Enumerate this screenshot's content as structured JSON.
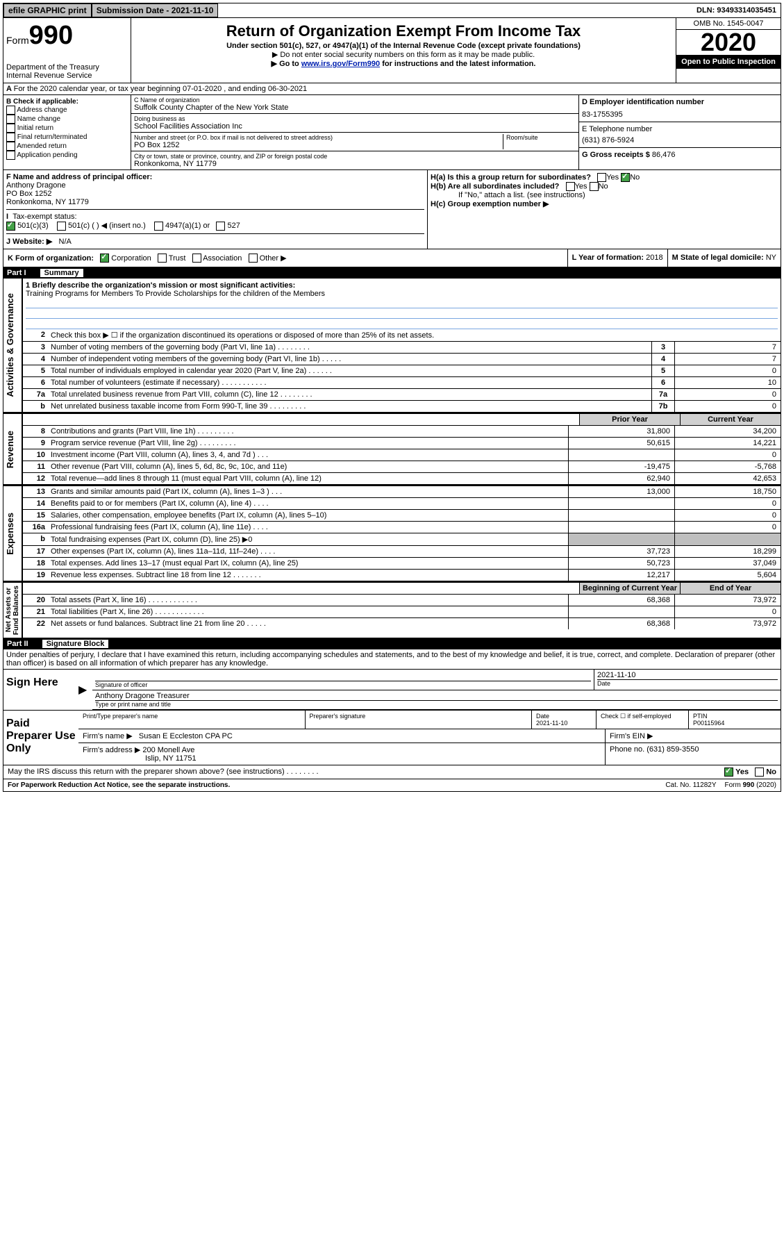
{
  "top": {
    "efile": "efile GRAPHIC print",
    "submission": "Submission Date - 2021-11-10",
    "dln": "DLN: 93493314035451"
  },
  "header": {
    "form_prefix": "Form",
    "form_number": "990",
    "dept": "Department of the Treasury\nInternal Revenue Service",
    "title": "Return of Organization Exempt From Income Tax",
    "sub1": "Under section 501(c), 527, or 4947(a)(1) of the Internal Revenue Code (except private foundations)",
    "sub2": "▶ Do not enter social security numbers on this form as it may be made public.",
    "sub3a": "▶ Go to ",
    "sub3link": "www.irs.gov/Form990",
    "sub3b": " for instructions and the latest information.",
    "omb": "OMB No. 1545-0047",
    "year": "2020",
    "open": "Open to Public Inspection"
  },
  "A": "For the 2020 calendar year, or tax year beginning 07-01-2020   , and ending 06-30-2021",
  "B": {
    "label": "B Check if applicable:",
    "opts": [
      "Address change",
      "Name change",
      "Initial return",
      "Final return/terminated",
      "Amended return",
      "Application pending"
    ]
  },
  "C": {
    "name_label": "C Name of organization",
    "name": "Suffolk County Chapter of the New York State",
    "dba_label": "Doing business as",
    "dba": "School Facilities Association Inc",
    "addr_label": "Number and street (or P.O. box if mail is not delivered to street address)",
    "room_label": "Room/suite",
    "addr": "PO Box 1252",
    "city_label": "City or town, state or province, country, and ZIP or foreign postal code",
    "city": "Ronkonkoma, NY  11779"
  },
  "D": {
    "label": "D Employer identification number",
    "val": "83-1755395"
  },
  "E": {
    "label": "E Telephone number",
    "val": "(631) 876-5924"
  },
  "G": {
    "label": "G Gross receipts $",
    "val": "86,476"
  },
  "F": {
    "label": "F  Name and address of principal officer:",
    "name": "Anthony Dragone",
    "addr1": "PO Box 1252",
    "addr2": "Ronkonkoma, NY  11779"
  },
  "H": {
    "a": "H(a)  Is this a group return for subordinates?",
    "b": "H(b)  Are all subordinates included?",
    "note": "If \"No,\" attach a list. (see instructions)",
    "c": "H(c)  Group exemption number ▶"
  },
  "I": {
    "label": "Tax-exempt status:",
    "opt1": "501(c)(3)",
    "opt2": "501(c) (  ) ◀ (insert no.)",
    "opt3": "4947(a)(1) or",
    "opt4": "527"
  },
  "J": {
    "label": "J   Website: ▶",
    "val": "N/A"
  },
  "K": {
    "label": "K Form of organization:",
    "corp": "Corporation",
    "trust": "Trust",
    "assoc": "Association",
    "other": "Other ▶"
  },
  "L": {
    "label": "L Year of formation:",
    "val": "2018"
  },
  "M": {
    "label": "M State of legal domicile:",
    "val": "NY"
  },
  "part1": {
    "label": "Part I",
    "title": "Summary"
  },
  "s1": {
    "label": "1  Briefly describe the organization's mission or most significant activities:",
    "text": "Training Programs for Members To Provide Scholarships for the children of the Members"
  },
  "lines_top": [
    {
      "n": "2",
      "d": "Check this box ▶ ☐ if the organization discontinued its operations or disposed of more than 25% of its net assets."
    },
    {
      "n": "3",
      "d": "Number of voting members of the governing body (Part VI, line 1a)   .    .    .    .    .    .    .    .",
      "box": "3",
      "v": "7"
    },
    {
      "n": "4",
      "d": "Number of independent voting members of the governing body (Part VI, line 1b)   .    .    .    .    .",
      "box": "4",
      "v": "7"
    },
    {
      "n": "5",
      "d": "Total number of individuals employed in calendar year 2020 (Part V, line 2a)   .    .    .    .    .    .",
      "box": "5",
      "v": "0"
    },
    {
      "n": "6",
      "d": "Total number of volunteers (estimate if necessary)   .    .    .    .    .    .    .    .    .    .    .",
      "box": "6",
      "v": "10"
    },
    {
      "n": "7a",
      "d": "Total unrelated business revenue from Part VIII, column (C), line 12   .    .    .    .    .    .    .    .",
      "box": "7a",
      "v": "0"
    },
    {
      "n": "b",
      "d": "Net unrelated business taxable income from Form 990-T, line 39   .    .    .    .    .    .    .    .    .",
      "box": "7b",
      "v": "0"
    }
  ],
  "headers2": {
    "prior": "Prior Year",
    "current": "Current Year"
  },
  "revenue": [
    {
      "n": "8",
      "d": "Contributions and grants (Part VIII, line 1h)  .    .    .    .    .    .    .    .    .",
      "p": "31,800",
      "c": "34,200"
    },
    {
      "n": "9",
      "d": "Program service revenue (Part VIII, line 2g)  .    .    .    .    .    .    .    .    .",
      "p": "50,615",
      "c": "14,221"
    },
    {
      "n": "10",
      "d": "Investment income (Part VIII, column (A), lines 3, 4, and 7d )  .    .    .",
      "p": "",
      "c": "0"
    },
    {
      "n": "11",
      "d": "Other revenue (Part VIII, column (A), lines 5, 6d, 8c, 9c, 10c, and 11e)",
      "p": "-19,475",
      "c": "-5,768"
    },
    {
      "n": "12",
      "d": "Total revenue—add lines 8 through 11 (must equal Part VIII, column (A), line 12)",
      "p": "62,940",
      "c": "42,653"
    }
  ],
  "expenses": [
    {
      "n": "13",
      "d": "Grants and similar amounts paid (Part IX, column (A), lines 1–3 )  .    .    .",
      "p": "13,000",
      "c": "18,750"
    },
    {
      "n": "14",
      "d": "Benefits paid to or for members (Part IX, column (A), line 4)  .    .    .    .",
      "p": "",
      "c": "0"
    },
    {
      "n": "15",
      "d": "Salaries, other compensation, employee benefits (Part IX, column (A), lines 5–10)",
      "p": "",
      "c": "0"
    },
    {
      "n": "16a",
      "d": "Professional fundraising fees (Part IX, column (A), line 11e)  .    .    .    .",
      "p": "",
      "c": "0"
    },
    {
      "n": "b",
      "d": "Total fundraising expenses (Part IX, column (D), line 25) ▶0",
      "p": "SHADE",
      "c": "SHADE"
    },
    {
      "n": "17",
      "d": "Other expenses (Part IX, column (A), lines 11a–11d, 11f–24e)  .    .    .    .",
      "p": "37,723",
      "c": "18,299"
    },
    {
      "n": "18",
      "d": "Total expenses. Add lines 13–17 (must equal Part IX, column (A), line 25)",
      "p": "50,723",
      "c": "37,049"
    },
    {
      "n": "19",
      "d": "Revenue less expenses. Subtract line 18 from line 12   .    .    .    .    .    .    .",
      "p": "12,217",
      "c": "5,604"
    }
  ],
  "headers3": {
    "begin": "Beginning of Current Year",
    "end": "End of Year"
  },
  "netassets": [
    {
      "n": "20",
      "d": "Total assets (Part X, line 16)  .    .    .    .    .    .    .    .    .    .    .    .",
      "p": "68,368",
      "c": "73,972"
    },
    {
      "n": "21",
      "d": "Total liabilities (Part X, line 26)  .    .    .    .    .    .    .    .    .    .    .    .",
      "p": "",
      "c": "0"
    },
    {
      "n": "22",
      "d": "Net assets or fund balances. Subtract line 21 from line 20  .    .    .    .    .",
      "p": "68,368",
      "c": "73,972"
    }
  ],
  "vlabels": {
    "gov": "Activities & Governance",
    "rev": "Revenue",
    "exp": "Expenses",
    "net": "Net Assets or\nFund Balances"
  },
  "part2": {
    "label": "Part II",
    "title": "Signature Block"
  },
  "perjury": "Under penalties of perjury, I declare that I have examined this return, including accompanying schedules and statements, and to the best of my knowledge and belief, it is true, correct, and complete. Declaration of preparer (other than officer) is based on all information of which preparer has any knowledge.",
  "sign": {
    "here": "Sign Here",
    "sig_label": "Signature of officer",
    "date": "2021-11-10",
    "date_label": "Date",
    "name": "Anthony Dragone  Treasurer",
    "name_label": "Type or print name and title"
  },
  "prep": {
    "label": "Paid Preparer Use Only",
    "h1": "Print/Type preparer's name",
    "h2": "Preparer's signature",
    "h3": "Date",
    "h3v": "2021-11-10",
    "h4": "Check ☐ if self-employed",
    "h5": "PTIN",
    "h5v": "P00115964",
    "firm_label": "Firm's name    ▶",
    "firm": "Susan E Eccleston CPA PC",
    "ein_label": "Firm's EIN ▶",
    "addr_label": "Firm's address ▶",
    "addr1": "200 Monell Ave",
    "addr2": "Islip, NY  11751",
    "phone_label": "Phone no.",
    "phone": "(631) 859-3550"
  },
  "discuss": "May the IRS discuss this return with the preparer shown above? (see instructions)   .     .     .     .     .     .     .     .",
  "footer": {
    "pra": "For Paperwork Reduction Act Notice, see the separate instructions.",
    "cat": "Cat. No. 11282Y",
    "form": "Form 990 (2020)"
  }
}
